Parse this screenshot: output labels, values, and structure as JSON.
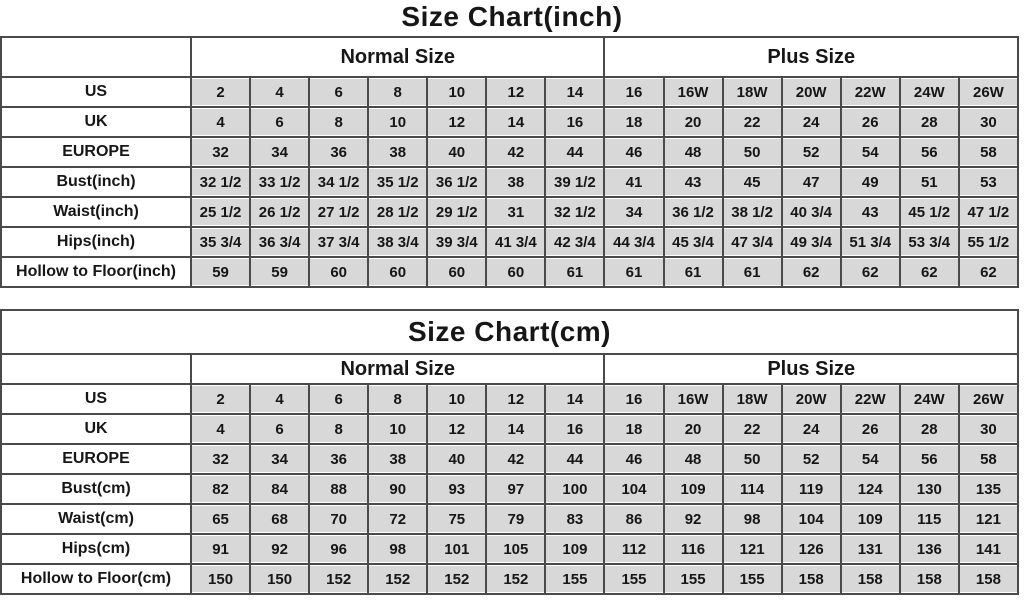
{
  "colors": {
    "cell_background": "#d8d8d8",
    "border": "#4a4a4a",
    "text": "#161616",
    "page_background": "#ffffff"
  },
  "chart_data": [
    {
      "type": "table",
      "title": "Size Chart(inch)",
      "title_inside_border": false,
      "column_groups": [
        {
          "label": "Normal Size",
          "span": 7
        },
        {
          "label": "Plus Size",
          "span": 7
        }
      ],
      "rows": [
        {
          "label": "US",
          "values": [
            "2",
            "4",
            "6",
            "8",
            "10",
            "12",
            "14",
            "16",
            "16W",
            "18W",
            "20W",
            "22W",
            "24W",
            "26W"
          ]
        },
        {
          "label": "UK",
          "values": [
            "4",
            "6",
            "8",
            "10",
            "12",
            "14",
            "16",
            "18",
            "20",
            "22",
            "24",
            "26",
            "28",
            "30"
          ]
        },
        {
          "label": "EUROPE",
          "values": [
            "32",
            "34",
            "36",
            "38",
            "40",
            "42",
            "44",
            "46",
            "48",
            "50",
            "52",
            "54",
            "56",
            "58"
          ]
        },
        {
          "label": "Bust(inch)",
          "values": [
            "32 1/2",
            "33 1/2",
            "34 1/2",
            "35 1/2",
            "36 1/2",
            "38",
            "39 1/2",
            "41",
            "43",
            "45",
            "47",
            "49",
            "51",
            "53"
          ]
        },
        {
          "label": "Waist(inch)",
          "values": [
            "25 1/2",
            "26 1/2",
            "27 1/2",
            "28 1/2",
            "29 1/2",
            "31",
            "32 1/2",
            "34",
            "36 1/2",
            "38 1/2",
            "40 3/4",
            "43",
            "45 1/2",
            "47 1/2"
          ]
        },
        {
          "label": "Hips(inch)",
          "values": [
            "35 3/4",
            "36 3/4",
            "37 3/4",
            "38 3/4",
            "39 3/4",
            "41 3/4",
            "42 3/4",
            "44 3/4",
            "45 3/4",
            "47 3/4",
            "49 3/4",
            "51 3/4",
            "53 3/4",
            "55 1/2"
          ]
        },
        {
          "label": "Hollow to Floor(inch)",
          "values": [
            "59",
            "59",
            "60",
            "60",
            "60",
            "60",
            "61",
            "61",
            "61",
            "61",
            "62",
            "62",
            "62",
            "62"
          ]
        }
      ]
    },
    {
      "type": "table",
      "title": "Size Chart(cm)",
      "title_inside_border": true,
      "column_groups": [
        {
          "label": "Normal Size",
          "span": 7
        },
        {
          "label": "Plus Size",
          "span": 7
        }
      ],
      "rows": [
        {
          "label": "US",
          "values": [
            "2",
            "4",
            "6",
            "8",
            "10",
            "12",
            "14",
            "16",
            "16W",
            "18W",
            "20W",
            "22W",
            "24W",
            "26W"
          ]
        },
        {
          "label": "UK",
          "values": [
            "4",
            "6",
            "8",
            "10",
            "12",
            "14",
            "16",
            "18",
            "20",
            "22",
            "24",
            "26",
            "28",
            "30"
          ]
        },
        {
          "label": "EUROPE",
          "values": [
            "32",
            "34",
            "36",
            "38",
            "40",
            "42",
            "44",
            "46",
            "48",
            "50",
            "52",
            "54",
            "56",
            "58"
          ]
        },
        {
          "label": "Bust(cm)",
          "values": [
            "82",
            "84",
            "88",
            "90",
            "93",
            "97",
            "100",
            "104",
            "109",
            "114",
            "119",
            "124",
            "130",
            "135"
          ]
        },
        {
          "label": "Waist(cm)",
          "values": [
            "65",
            "68",
            "70",
            "72",
            "75",
            "79",
            "83",
            "86",
            "92",
            "98",
            "104",
            "109",
            "115",
            "121"
          ]
        },
        {
          "label": "Hips(cm)",
          "values": [
            "91",
            "92",
            "96",
            "98",
            "101",
            "105",
            "109",
            "112",
            "116",
            "121",
            "126",
            "131",
            "136",
            "141"
          ]
        },
        {
          "label": "Hollow to Floor(cm)",
          "values": [
            "150",
            "150",
            "152",
            "152",
            "152",
            "152",
            "155",
            "155",
            "155",
            "155",
            "158",
            "158",
            "158",
            "158"
          ]
        }
      ]
    }
  ]
}
